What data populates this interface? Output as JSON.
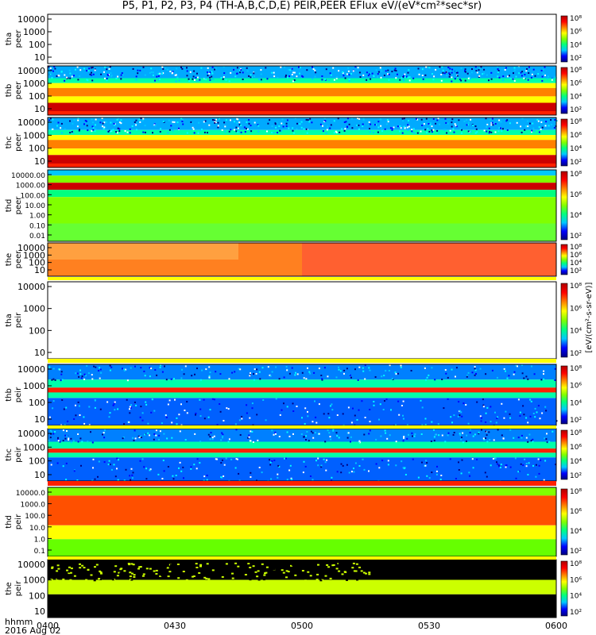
{
  "title": "P5, P1, P2, P3, P4 (TH-A,B,C,D,E) PEIR,PEER EFlux eV/(eV*cm²*sec*sr)",
  "chart_data": {
    "type": "heatmap",
    "title": "P5, P1, P2, P3, P4 (TH-A,B,C,D,E) PEIR,PEER EFlux eV/(eV*cm²*sec*sr)",
    "xlabel": "hhmm",
    "date_label": "2016 Aug 02",
    "x_ticks": [
      "0400",
      "0430",
      "0500",
      "0530",
      "0600"
    ],
    "x_range": [
      "04:00",
      "06:00"
    ],
    "colorbar_label": "[eV/(cm²-s-sr-eV)]",
    "colormap": [
      "#000080",
      "#0000ff",
      "#00c8ff",
      "#00ff80",
      "#80ff00",
      "#ffff00",
      "#ff8000",
      "#ff0000",
      "#b00000"
    ],
    "panels": [
      {
        "probe": "tha",
        "species": "peer",
        "ylabel": [
          "tha",
          "peer"
        ],
        "y_ticks": [
          "10000",
          "1000",
          "100",
          "10"
        ],
        "colorbar_ticks": [
          "10⁸",
          "10⁶",
          "10⁴",
          "10²"
        ],
        "data": "none"
      },
      {
        "probe": "thb",
        "species": "peer",
        "ylabel": [
          "thb",
          "peer"
        ],
        "y_ticks": [
          "10000",
          "1000",
          "100",
          "10"
        ],
        "colorbar_ticks": [
          "10⁸",
          "10⁶",
          "10⁴",
          "10²"
        ],
        "data": "full"
      },
      {
        "probe": "thc",
        "species": "peer",
        "ylabel": [
          "thc",
          "peer"
        ],
        "y_ticks": [
          "10000",
          "1000",
          "100",
          "10"
        ],
        "colorbar_ticks": [
          "10⁸",
          "10⁶",
          "10⁴",
          "10²"
        ],
        "data": "full"
      },
      {
        "probe": "thd",
        "species": "peer",
        "ylabel": [
          "thd",
          "peer"
        ],
        "y_ticks": [
          "10000.00",
          "1000.00",
          "100.00",
          "10.00",
          "1.00",
          "0.10",
          "0.01"
        ],
        "colorbar_ticks": [
          "10⁸",
          "10⁶",
          "10⁴",
          "10²"
        ],
        "data": "full"
      },
      {
        "probe": "the",
        "species": "peer",
        "ylabel": [
          "the",
          "peer"
        ],
        "y_ticks": [
          "10000",
          "1000",
          "100",
          "10"
        ],
        "colorbar_ticks": [
          "10⁸",
          "10⁶",
          "10⁴",
          "10²"
        ],
        "data": "full"
      },
      {
        "probe": "tha",
        "species": "peir",
        "ylabel": [
          "tha",
          "peir"
        ],
        "y_ticks": [
          "10000",
          "1000",
          "100",
          "10"
        ],
        "colorbar_ticks": [
          "10⁸",
          "10⁶",
          "10⁴",
          "10²"
        ],
        "data": "none"
      },
      {
        "probe": "thb",
        "species": "peir",
        "ylabel": [
          "thb",
          "peir"
        ],
        "y_ticks": [
          "10000",
          "1000",
          "100",
          "10"
        ],
        "colorbar_ticks": [
          "10⁸",
          "10⁶",
          "10⁴",
          "10²"
        ],
        "data": "full"
      },
      {
        "probe": "thc",
        "species": "peir",
        "ylabel": [
          "thc",
          "peir"
        ],
        "y_ticks": [
          "10000",
          "1000",
          "100",
          "10"
        ],
        "colorbar_ticks": [
          "10⁸",
          "10⁶",
          "10⁴",
          "10²"
        ],
        "data": "full"
      },
      {
        "probe": "thd",
        "species": "peir",
        "ylabel": [
          "thd",
          "peir"
        ],
        "y_ticks": [
          "10000.0",
          "1000.0",
          "100.0",
          "10.0",
          "1.0",
          "0.1"
        ],
        "colorbar_ticks": [
          "10⁸",
          "10⁶",
          "10⁴",
          "10²"
        ],
        "data": "full"
      },
      {
        "probe": "the",
        "species": "peir",
        "ylabel": [
          "the",
          "peir"
        ],
        "y_ticks": [
          "10000",
          "1000",
          "100",
          "10"
        ],
        "colorbar_ticks": [
          "10⁸",
          "10⁶",
          "10⁴",
          "10²"
        ],
        "data": "full"
      }
    ]
  }
}
